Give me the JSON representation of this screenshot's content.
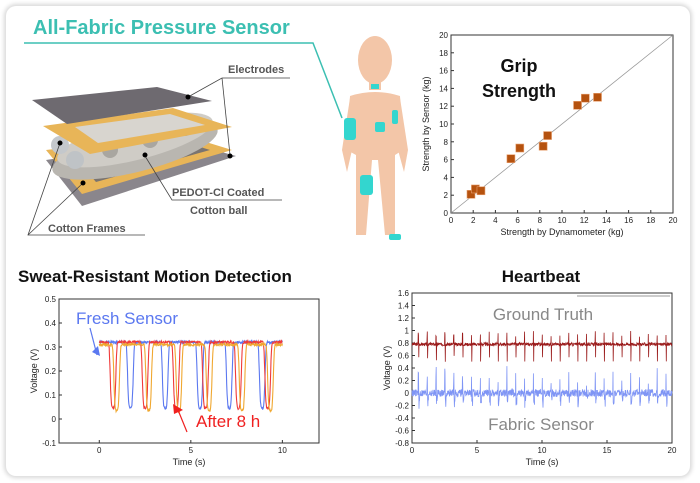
{
  "sensor_diagram": {
    "title": "All-Fabric Pressure Sensor",
    "labels": {
      "electrodes": "Electrodes",
      "coated_ball_line1": "PEDOT-Cl Coated",
      "coated_ball_line2": "Cotton ball",
      "frames": "Cotton Frames"
    },
    "colors": {
      "title": "#3cbfb2",
      "electrode": "#6e6a70",
      "frame": "#e8b558",
      "cotton": "#b9b6b0",
      "patch": "#33d6cf",
      "skin": "#f3c6a8"
    }
  },
  "chart_data": [
    {
      "type": "scatter",
      "title": "Grip Strength",
      "xlabel": "Strength by Dynamometer (kg)",
      "ylabel": "Strength by Sensor (kg)",
      "xlim": [
        0,
        20
      ],
      "ylim": [
        0,
        20
      ],
      "xticks": [
        0,
        2,
        4,
        6,
        8,
        10,
        12,
        14,
        16,
        18,
        20
      ],
      "yticks": [
        0,
        2,
        4,
        6,
        8,
        10,
        12,
        14,
        16,
        18,
        20
      ],
      "reference_line": "y = x",
      "marker_color": "#b5520f",
      "points": [
        [
          1.8,
          2.1
        ],
        [
          2.2,
          2.7
        ],
        [
          2.7,
          2.5
        ],
        [
          5.4,
          6.1
        ],
        [
          6.2,
          7.3
        ],
        [
          8.3,
          7.5
        ],
        [
          8.7,
          8.7
        ],
        [
          11.4,
          12.1
        ],
        [
          12.1,
          12.9
        ],
        [
          13.2,
          13.0
        ]
      ]
    },
    {
      "type": "line",
      "title": "Sweat-Resistant Motion Detection",
      "xlabel": "Time (s)",
      "ylabel": "Voltage (V)",
      "xlim": [
        -2.2,
        12
      ],
      "ylim": [
        -0.1,
        0.5
      ],
      "xticks": [
        0,
        5,
        10
      ],
      "yticks": [
        "-0.1",
        "0",
        "0.1",
        "0.2",
        "0.3",
        "0.4",
        "0.5"
      ],
      "annotations": {
        "fresh": "Fresh Sensor",
        "after": "After 8 h"
      },
      "series": [
        {
          "name": "Fresh Sensor",
          "color": "#5b78f0",
          "baseline": 0.32,
          "minimum": 0.045,
          "dip_times": [
            1.7,
            3.6,
            5.5,
            7.1,
            8.9
          ]
        },
        {
          "name": "After 8 h",
          "color": "#f03a3a",
          "baseline": 0.32,
          "minimum": 0.045,
          "dip_times": [
            0.75,
            2.5,
            4.2,
            5.8,
            7.6,
            9.2
          ]
        },
        {
          "color": "#f0a830",
          "baseline": 0.31,
          "minimum": 0.035,
          "dip_times": [
            0.95,
            2.7,
            4.35,
            6.0,
            7.8,
            9.35
          ]
        }
      ]
    },
    {
      "type": "line",
      "title": "Heartbeat",
      "xlabel": "Time (s)",
      "ylabel": "Voltage (V)",
      "xlim": [
        0,
        20
      ],
      "ylim": [
        -0.8,
        1.6
      ],
      "xticks": [
        0,
        5,
        10,
        15,
        20
      ],
      "yticks": [
        "-0.8",
        "-0.6",
        "-0.4",
        "-0.2",
        "0",
        "0.2",
        "0.4",
        "0.6",
        "0.8",
        "1",
        "1.2",
        "1.4",
        "1.6"
      ],
      "annotations": {
        "ground_truth": "Ground Truth",
        "fabric": "Fabric Sensor"
      },
      "series": [
        {
          "name": "Ground Truth",
          "color": "#9b1c1c",
          "baseline": 0.78,
          "peak": 1.0,
          "trough": 0.5,
          "beat_period_s": 0.68
        },
        {
          "name": "Fabric Sensor",
          "color": "#7f95f5",
          "baseline": 0.0,
          "peak": 0.5,
          "trough": -0.3,
          "beat_period_s": 0.68
        }
      ]
    }
  ]
}
